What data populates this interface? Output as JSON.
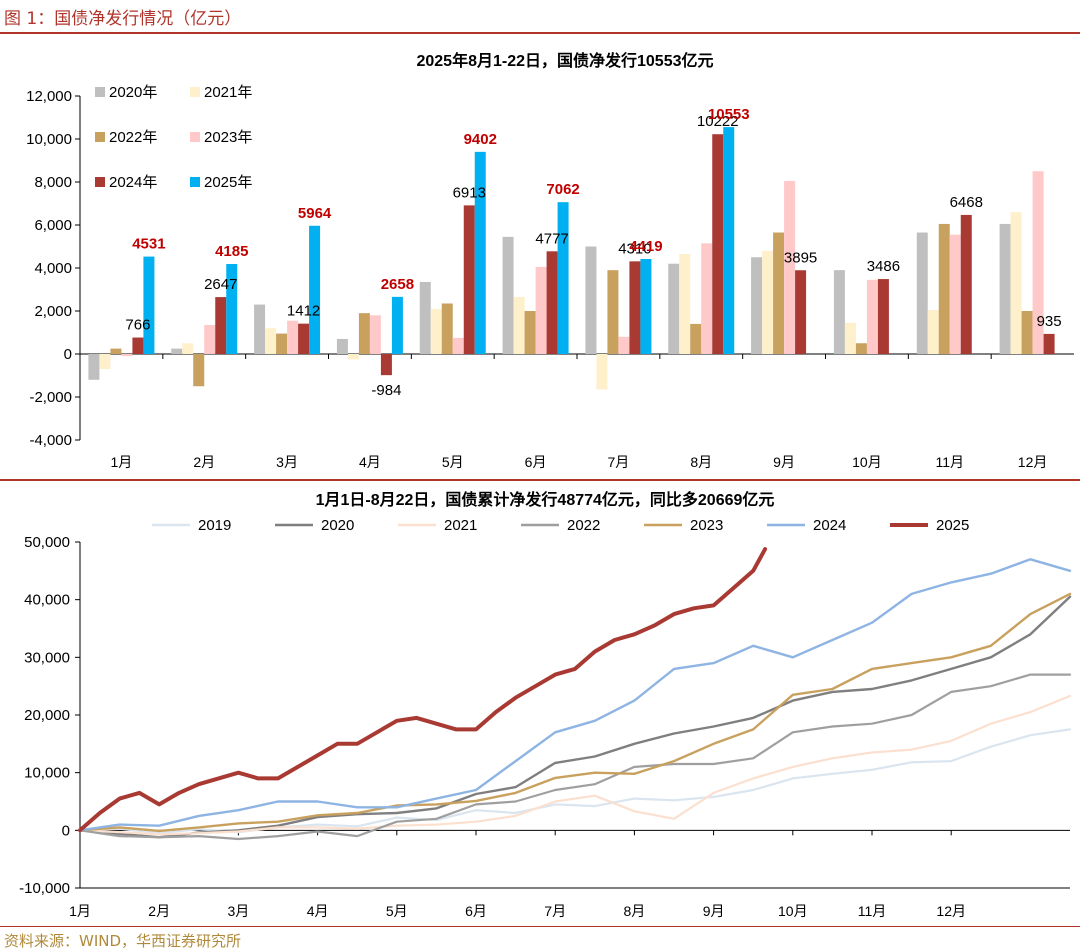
{
  "figure": {
    "title": "图 1：国债净发行情况（亿元）",
    "source": "资料来源：WIND，华西证券研究所"
  },
  "chart_data": [
    {
      "type": "bar",
      "title": "2025年8月1-22日，国债净发行10553亿元",
      "categories": [
        "1月",
        "2月",
        "3月",
        "4月",
        "5月",
        "6月",
        "7月",
        "8月",
        "9月",
        "10月",
        "11月",
        "12月"
      ],
      "ylim": [
        -4000,
        12000
      ],
      "yticks": [
        -4000,
        -2000,
        0,
        2000,
        4000,
        6000,
        8000,
        10000,
        12000
      ],
      "ytick_labels": [
        "-4,000",
        "-2,000",
        "0",
        "2,000",
        "4,000",
        "6,000",
        "8,000",
        "10,000",
        "12,000"
      ],
      "legend_placement": "top-left",
      "grid": false,
      "series": [
        {
          "name": "2020年",
          "color": "#bfbfbf",
          "values": [
            -1200,
            250,
            2300,
            700,
            3350,
            5450,
            5000,
            4200,
            4500,
            3900,
            5650,
            6050
          ]
        },
        {
          "name": "2021年",
          "color": "#fff0cc",
          "values": [
            -700,
            500,
            1200,
            -250,
            2100,
            2650,
            -1650,
            4650,
            4800,
            1450,
            2050,
            6600
          ]
        },
        {
          "name": "2022年",
          "color": "#c9a15e",
          "values": [
            250,
            -1500,
            950,
            1900,
            2350,
            2000,
            3900,
            1400,
            5650,
            500,
            6050,
            2000
          ]
        },
        {
          "name": "2023年",
          "color": "#ffc9c9",
          "values": [
            -100,
            1350,
            1550,
            1800,
            750,
            4050,
            800,
            5150,
            8050,
            3450,
            5550,
            8500
          ]
        },
        {
          "name": "2024年",
          "color": "#a93a33",
          "values": [
            766,
            2647,
            1412,
            -984,
            6913,
            4777,
            4310,
            10222,
            3895,
            3486,
            6468,
            935
          ]
        },
        {
          "name": "2025年",
          "color": "#00b0f0",
          "values": [
            4531,
            4185,
            5964,
            2658,
            9402,
            7062,
            4419,
            10553,
            null,
            null,
            null,
            null
          ]
        }
      ],
      "data_labels": [
        {
          "category": "1月",
          "series": "2024年",
          "text": "766",
          "color": "#000000",
          "bold": false
        },
        {
          "category": "1月",
          "series": "2025年",
          "text": "4531",
          "color": "#c00000",
          "bold": true
        },
        {
          "category": "2月",
          "series": "2024年",
          "text": "2647",
          "color": "#000000",
          "bold": false
        },
        {
          "category": "2月",
          "series": "2025年",
          "text": "4185",
          "color": "#c00000",
          "bold": true
        },
        {
          "category": "3月",
          "series": "2024年",
          "text": "1412",
          "color": "#000000",
          "bold": false
        },
        {
          "category": "3月",
          "series": "2025年",
          "text": "5964",
          "color": "#c00000",
          "bold": true
        },
        {
          "category": "4月",
          "series": "2024年",
          "text": "-984",
          "color": "#000000",
          "bold": false
        },
        {
          "category": "4月",
          "series": "2025年",
          "text": "2658",
          "color": "#c00000",
          "bold": true
        },
        {
          "category": "5月",
          "series": "2024年",
          "text": "6913",
          "color": "#000000",
          "bold": false
        },
        {
          "category": "5月",
          "series": "2025年",
          "text": "9402",
          "color": "#c00000",
          "bold": true
        },
        {
          "category": "6月",
          "series": "2024年",
          "text": "4777",
          "color": "#000000",
          "bold": false
        },
        {
          "category": "6月",
          "series": "2025年",
          "text": "7062",
          "color": "#c00000",
          "bold": true
        },
        {
          "category": "7月",
          "series": "2024年",
          "text": "4310",
          "color": "#000000",
          "bold": false
        },
        {
          "category": "7月",
          "series": "2025年",
          "text": "4419",
          "color": "#c00000",
          "bold": true
        },
        {
          "category": "8月",
          "series": "2024年",
          "text": "10222",
          "color": "#000000",
          "bold": false
        },
        {
          "category": "8月",
          "series": "2025年",
          "text": "10553",
          "color": "#c00000",
          "bold": true
        },
        {
          "category": "9月",
          "series": "2024年",
          "text": "3895",
          "color": "#000000",
          "bold": false
        },
        {
          "category": "10月",
          "series": "2024年",
          "text": "3486",
          "color": "#000000",
          "bold": false
        },
        {
          "category": "11月",
          "series": "2024年",
          "text": "6468",
          "color": "#000000",
          "bold": false
        },
        {
          "category": "12月",
          "series": "2024年",
          "text": "935",
          "color": "#000000",
          "bold": false
        }
      ]
    },
    {
      "type": "line",
      "title": "1月1日-8月22日，国债累计净发行48774亿元，同比多20669亿元",
      "x_ticks": [
        "1月",
        "2月",
        "3月",
        "4月",
        "5月",
        "6月",
        "7月",
        "8月",
        "9月",
        "10月",
        "11月",
        "12月"
      ],
      "ylim": [
        -10000,
        50000
      ],
      "yticks": [
        -10000,
        0,
        10000,
        20000,
        30000,
        40000,
        50000
      ],
      "ytick_labels": [
        "-10,000",
        "0",
        "10,000",
        "20,000",
        "30,000",
        "40,000",
        "50,000"
      ],
      "legend_placement": "top",
      "grid": false,
      "series": [
        {
          "name": "2019",
          "color": "#dae5f0",
          "width": 2.2,
          "x": [
            0,
            0.5,
            1,
            1.5,
            2,
            2.5,
            3,
            3.5,
            4,
            4.5,
            5,
            5.5,
            6,
            6.5,
            7,
            7.5,
            8,
            8.5,
            9,
            9.5,
            10,
            10.5,
            11,
            11.5,
            12,
            12.5
          ],
          "y": [
            0,
            300,
            -500,
            200,
            -300,
            500,
            1000,
            700,
            2200,
            1800,
            3500,
            3000,
            4500,
            4200,
            5500,
            5200,
            5800,
            7000,
            9000,
            9800,
            10500,
            11800,
            12000,
            14500,
            16500,
            17500
          ]
        },
        {
          "name": "2020",
          "color": "#7f7f7f",
          "width": 2.4,
          "x": [
            0,
            0.5,
            1,
            1.5,
            2,
            2.5,
            3,
            3.5,
            4,
            4.5,
            5,
            5.5,
            6,
            6.5,
            7,
            7.5,
            8,
            8.5,
            9,
            9.5,
            10,
            10.5,
            11,
            11.5,
            12,
            12.5
          ],
          "y": [
            0,
            -600,
            -1200,
            -400,
            0,
            800,
            2300,
            2800,
            3000,
            3800,
            6300,
            7500,
            11700,
            12800,
            15000,
            16800,
            18000,
            19500,
            22500,
            24000,
            24500,
            26000,
            28000,
            30000,
            34000,
            40500
          ]
        },
        {
          "name": "2021",
          "color": "#fbe0d0",
          "width": 2.2,
          "x": [
            0,
            0.5,
            1,
            1.5,
            2,
            2.5,
            3,
            3.5,
            4,
            4.5,
            5,
            5.5,
            6,
            6.5,
            7,
            7.5,
            8,
            8.5,
            9,
            9.5,
            10,
            10.5,
            11,
            11.5,
            12,
            12.5
          ],
          "y": [
            0,
            -300,
            -700,
            -500,
            -200,
            500,
            500,
            300,
            800,
            1000,
            1500,
            2500,
            5000,
            6000,
            3300,
            2000,
            6500,
            9000,
            11000,
            12500,
            13500,
            14000,
            15500,
            18500,
            20500,
            23300
          ]
        },
        {
          "name": "2022",
          "color": "#9f9f9f",
          "width": 2.2,
          "x": [
            0,
            0.5,
            1,
            1.5,
            2,
            2.5,
            3,
            3.5,
            4,
            4.5,
            5,
            5.5,
            6,
            6.5,
            7,
            7.5,
            8,
            8.5,
            9,
            9.5,
            10,
            10.5,
            11,
            11.5,
            12,
            12.5
          ],
          "y": [
            0,
            -1000,
            -1200,
            -1000,
            -1500,
            -1000,
            -200,
            -1000,
            1500,
            2000,
            4500,
            5000,
            7000,
            8000,
            11000,
            11500,
            11500,
            12500,
            17000,
            18000,
            18500,
            20000,
            24000,
            25000,
            27000,
            27000
          ]
        },
        {
          "name": "2023",
          "color": "#c9a15e",
          "width": 2.4,
          "x": [
            0,
            0.5,
            1,
            1.5,
            2,
            2.5,
            3,
            3.5,
            4,
            4.5,
            5,
            5.5,
            6,
            6.5,
            7,
            7.5,
            8,
            8.5,
            9,
            9.5,
            10,
            10.5,
            11,
            11.5,
            12,
            12.5
          ],
          "y": [
            0,
            500,
            -100,
            500,
            1200,
            1500,
            2600,
            3000,
            4300,
            4500,
            5100,
            6500,
            9100,
            10000,
            9800,
            12000,
            15000,
            17500,
            23500,
            24500,
            28000,
            29000,
            30000,
            32000,
            37500,
            41000
          ]
        },
        {
          "name": "2024",
          "color": "#8eb4e3",
          "width": 2.4,
          "x": [
            0,
            0.5,
            1,
            1.5,
            2,
            2.5,
            3,
            3.5,
            4,
            4.5,
            5,
            5.5,
            6,
            6.5,
            7,
            7.5,
            8,
            8.5,
            9,
            9.5,
            10,
            10.5,
            11,
            11.5,
            12,
            12.5
          ],
          "y": [
            0,
            1000,
            800,
            2500,
            3500,
            5000,
            5000,
            4000,
            4000,
            5500,
            7000,
            12000,
            17000,
            19000,
            22500,
            28000,
            29000,
            32000,
            30000,
            33000,
            36000,
            41000,
            43000,
            44500,
            47000,
            45000
          ]
        },
        {
          "name": "2025",
          "color": "#a93a33",
          "width": 4,
          "x": [
            0,
            0.25,
            0.5,
            0.75,
            1,
            1.25,
            1.5,
            2,
            2.25,
            2.5,
            2.75,
            3,
            3.25,
            3.5,
            3.75,
            4,
            4.25,
            4.5,
            4.75,
            5,
            5.25,
            5.5,
            5.75,
            6,
            6.25,
            6.5,
            6.75,
            7,
            7.25,
            7.5,
            7.75,
            8,
            8.25,
            8.5,
            8.65
          ],
          "y": [
            0,
            3000,
            5500,
            6500,
            4500,
            6500,
            8000,
            10000,
            9000,
            9000,
            11000,
            13000,
            15000,
            15000,
            17000,
            19000,
            19500,
            18500,
            17500,
            17500,
            20500,
            23000,
            25000,
            27000,
            28000,
            31000,
            33000,
            34000,
            35500,
            37500,
            38500,
            39000,
            42000,
            45000,
            48774
          ]
        }
      ]
    }
  ]
}
